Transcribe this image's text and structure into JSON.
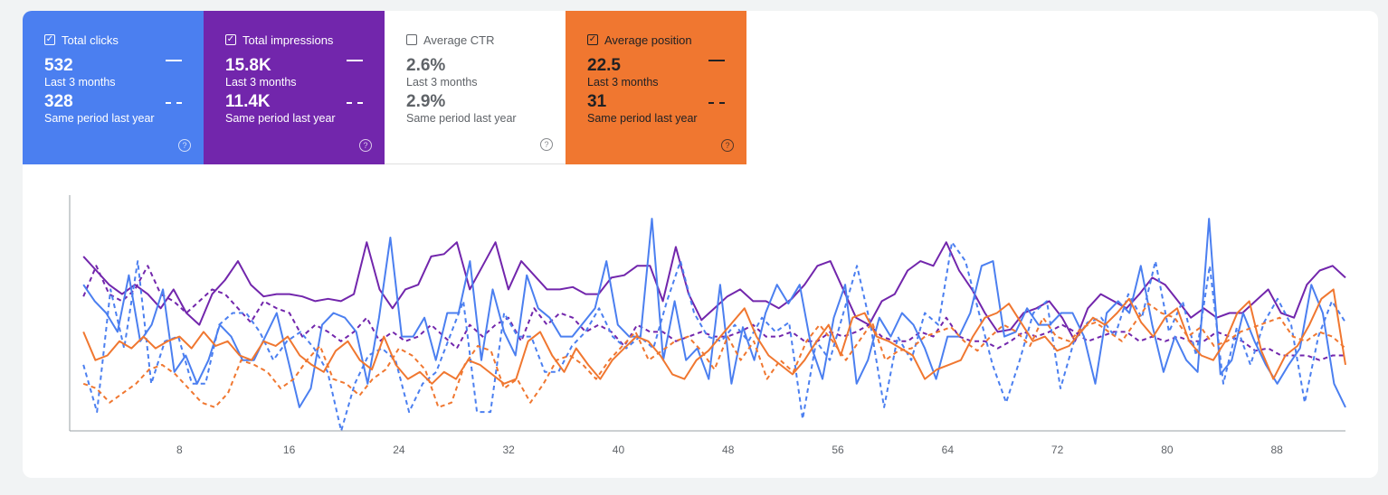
{
  "cards": [
    {
      "id": "clicks",
      "label": "Total clicks",
      "checked": true,
      "current_value": "532",
      "current_label": "Last 3 months",
      "previous_value": "328",
      "previous_label": "Same period last year",
      "color": "#4b7ff0"
    },
    {
      "id": "impressions",
      "label": "Total impressions",
      "checked": true,
      "current_value": "15.8K",
      "current_label": "Last 3 months",
      "previous_value": "11.4K",
      "previous_label": "Same period last year",
      "color": "#7226ac"
    },
    {
      "id": "ctr",
      "label": "Average CTR",
      "checked": false,
      "current_value": "2.6%",
      "current_label": "Last 3 months",
      "previous_value": "2.9%",
      "previous_label": "Same period last year",
      "color": "#ffffff"
    },
    {
      "id": "position",
      "label": "Average position",
      "checked": true,
      "current_value": "22.5",
      "current_label": "Last 3 months",
      "previous_value": "31",
      "previous_label": "Same period last year",
      "color": "#f07730"
    }
  ],
  "icons": {
    "checkbox": "checkbox-icon",
    "help": "help-circle-icon"
  },
  "chart_data": {
    "type": "line",
    "x_ticks": [
      "8",
      "16",
      "24",
      "32",
      "40",
      "48",
      "56",
      "64",
      "72",
      "80",
      "88"
    ],
    "x_tick_values": [
      8,
      16,
      24,
      32,
      40,
      48,
      56,
      64,
      72,
      80,
      88
    ],
    "xlim": [
      0,
      93
    ],
    "ylim": [
      0,
      100
    ],
    "grid": false,
    "series": [
      {
        "name": "Total impressions",
        "color": "#7226ac",
        "dashed": false,
        "values": [
          74,
          68,
          62,
          58,
          62,
          58,
          52,
          60,
          50,
          45,
          58,
          64,
          72,
          62,
          57,
          58,
          58,
          57,
          55,
          56,
          55,
          58,
          80,
          60,
          52,
          60,
          62,
          74,
          75,
          80,
          60,
          70,
          80,
          60,
          72,
          66,
          60,
          60,
          61,
          58,
          58,
          65,
          66,
          70,
          70,
          55,
          78,
          58,
          47,
          52,
          57,
          60,
          55,
          55,
          52,
          56,
          62,
          70,
          72,
          60,
          48,
          45,
          55,
          58,
          68,
          72,
          70,
          80,
          68,
          60,
          50,
          42,
          43,
          50,
          52,
          55,
          48,
          38,
          52,
          58,
          55,
          52,
          58,
          65,
          62,
          55,
          48,
          52,
          48,
          50,
          50,
          55,
          60,
          50,
          48,
          62,
          68,
          70,
          65
        ]
      },
      {
        "name": "Total impressions (previous)",
        "color": "#7226ac",
        "dashed": true,
        "values": [
          57,
          70,
          58,
          55,
          60,
          70,
          58,
          55,
          50,
          55,
          60,
          58,
          52,
          46,
          55,
          52,
          50,
          40,
          45,
          42,
          38,
          42,
          48,
          38,
          42,
          38,
          40,
          45,
          40,
          35,
          45,
          40,
          45,
          48,
          38,
          52,
          45,
          50,
          48,
          42,
          45,
          42,
          36,
          45,
          42,
          42,
          38,
          40,
          42,
          40,
          40,
          42,
          45,
          40,
          40,
          42,
          38,
          38,
          42,
          40,
          42,
          45,
          40,
          38,
          38,
          42,
          40,
          48,
          40,
          38,
          38,
          35,
          38,
          42,
          40,
          42,
          45,
          42,
          38,
          40,
          42,
          42,
          38,
          40,
          38,
          40,
          38,
          38,
          42,
          40,
          38,
          34,
          35,
          32,
          32,
          32,
          30,
          32,
          32
        ]
      },
      {
        "name": "Total clicks",
        "color": "#4b7ff0",
        "dashed": false,
        "values": [
          62,
          55,
          50,
          42,
          66,
          38,
          45,
          60,
          25,
          32,
          20,
          30,
          45,
          40,
          30,
          30,
          40,
          50,
          30,
          10,
          18,
          45,
          50,
          48,
          42,
          20,
          48,
          82,
          40,
          40,
          48,
          30,
          50,
          50,
          72,
          30,
          60,
          42,
          32,
          66,
          52,
          48,
          40,
          40,
          46,
          52,
          72,
          45,
          40,
          40,
          90,
          30,
          55,
          30,
          35,
          22,
          62,
          20,
          44,
          30,
          50,
          62,
          54,
          62,
          36,
          22,
          48,
          62,
          20,
          30,
          48,
          40,
          50,
          45,
          35,
          22,
          40,
          40,
          50,
          70,
          72,
          40,
          42,
          52,
          45,
          45,
          50,
          50,
          40,
          20,
          50,
          55,
          50,
          70,
          45,
          25,
          40,
          30,
          25,
          90,
          24,
          30,
          50,
          38,
          28,
          20,
          28,
          35,
          62,
          50,
          20,
          10
        ]
      },
      {
        "name": "Total clicks (previous)",
        "color": "#4b7ff0",
        "dashed": true,
        "values": [
          28,
          8,
          60,
          35,
          72,
          20,
          38,
          40,
          20,
          20,
          45,
          50,
          50,
          42,
          30,
          38,
          42,
          35,
          25,
          0,
          20,
          32,
          35,
          30,
          8,
          20,
          25,
          40,
          55,
          8,
          8,
          50,
          40,
          40,
          25,
          25,
          36,
          42,
          52,
          40,
          35,
          40,
          35,
          55,
          72,
          50,
          40,
          38,
          45,
          38,
          48,
          42,
          46,
          5,
          38,
          30,
          50,
          70,
          45,
          10,
          40,
          30,
          50,
          45,
          80,
          72,
          50,
          28,
          12,
          30,
          50,
          55,
          18,
          38,
          46,
          48,
          40,
          58,
          48,
          72,
          42,
          55,
          32,
          70,
          20,
          44,
          28,
          46,
          56,
          45,
          12,
          40,
          55,
          46
        ]
      },
      {
        "name": "Average position",
        "color": "#f07730",
        "dashed": false,
        "values": [
          42,
          30,
          32,
          38,
          35,
          40,
          35,
          38,
          40,
          35,
          42,
          36,
          38,
          32,
          30,
          38,
          36,
          40,
          32,
          28,
          25,
          34,
          38,
          30,
          26,
          40,
          28,
          22,
          25,
          20,
          25,
          22,
          30,
          28,
          24,
          20,
          22,
          38,
          42,
          32,
          25,
          35,
          28,
          22,
          30,
          35,
          40,
          38,
          32,
          24,
          22,
          30,
          34,
          40,
          46,
          52,
          40,
          32,
          28,
          24,
          30,
          38,
          45,
          32,
          48,
          50,
          40,
          38,
          35,
          32,
          22,
          26,
          28,
          30,
          40,
          48,
          50,
          54,
          46,
          38,
          40,
          34,
          36,
          42,
          48,
          45,
          50,
          56,
          46,
          40,
          48,
          52,
          38,
          32,
          30,
          38,
          50,
          55,
          34,
          22,
          32,
          36,
          45,
          56,
          60,
          28
        ]
      },
      {
        "name": "Average position (previous)",
        "color": "#f07730",
        "dashed": true,
        "values": [
          20,
          18,
          12,
          16,
          20,
          26,
          28,
          24,
          18,
          12,
          10,
          16,
          30,
          28,
          25,
          18,
          22,
          30,
          36,
          22,
          20,
          15,
          22,
          26,
          35,
          32,
          26,
          10,
          12,
          28,
          36,
          34,
          18,
          22,
          12,
          20,
          30,
          32,
          28,
          22,
          30,
          36,
          42,
          30,
          34,
          38,
          40,
          34,
          26,
          40,
          30,
          38,
          22,
          30,
          25,
          38,
          45,
          38,
          30,
          38,
          46,
          30,
          34,
          35,
          40,
          42,
          44,
          38,
          34,
          40,
          45,
          42,
          36,
          48,
          40,
          38,
          44,
          46,
          42,
          38,
          46,
          54,
          50,
          48,
          40,
          44,
          36,
          38,
          42,
          44,
          46,
          48,
          40,
          38,
          42,
          40,
          35
        ]
      }
    ]
  }
}
